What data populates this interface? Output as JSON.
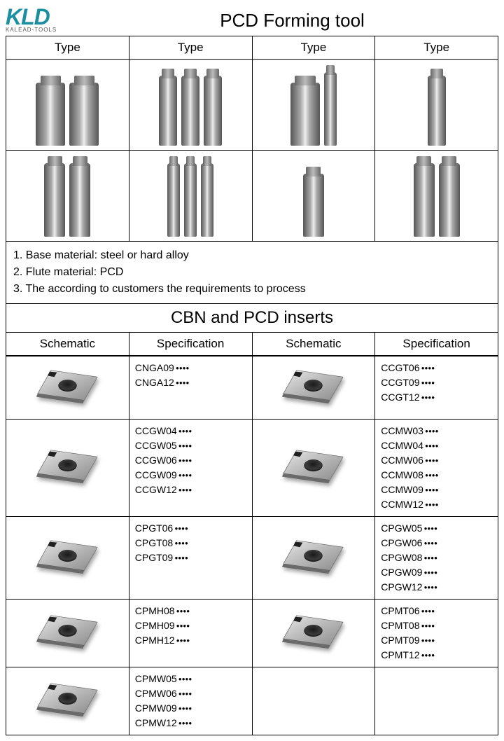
{
  "logo": {
    "main": "KLD",
    "sub": "KALEAD-TOOLS"
  },
  "title_forming": "PCD Forming tool",
  "forming_headers": [
    "Type",
    "Type",
    "Type",
    "Type"
  ],
  "notes": [
    "1. Base material: steel or hard alloy",
    "2. Flute material: PCD",
    "3. The according to customers the requirements to process"
  ],
  "title_inserts": "CBN and PCD inserts",
  "insert_headers": [
    "Schematic",
    "Specification",
    "Schematic",
    "Specification"
  ],
  "spec_rows": [
    {
      "left": [
        "CNGA09",
        "CNGA12"
      ],
      "right": [
        "CCGT06",
        "CCGT09",
        "CCGT12"
      ],
      "right_has_img": true
    },
    {
      "left": [
        "CCGW04",
        "CCGW05",
        "CCGW06",
        "CCGW09",
        "CCGW12"
      ],
      "right": [
        "CCMW03",
        "CCMW04",
        "CCMW06",
        "CCMW08",
        "CCMW09",
        "CCMW12"
      ],
      "right_has_img": true
    },
    {
      "left": [
        "CPGT06",
        "CPGT08",
        "CPGT09"
      ],
      "right": [
        "CPGW05",
        "CPGW06",
        "CPGW08",
        "CPGW09",
        "CPGW12"
      ],
      "right_has_img": true
    },
    {
      "left": [
        "CPMH08",
        "CPMH09",
        "CPMH12"
      ],
      "right": [
        "CPMT06",
        "CPMT08",
        "CPMT09",
        "CPMT12"
      ],
      "right_has_img": true
    },
    {
      "left": [
        "CPMW05",
        "CPMW06",
        "CPMW09",
        "CPMW12"
      ],
      "right": [],
      "right_has_img": false
    }
  ],
  "colors": {
    "brand": "#1a8fa0",
    "border": "#000000",
    "metal_dark": "#555555",
    "metal_light": "#eeeeee"
  }
}
